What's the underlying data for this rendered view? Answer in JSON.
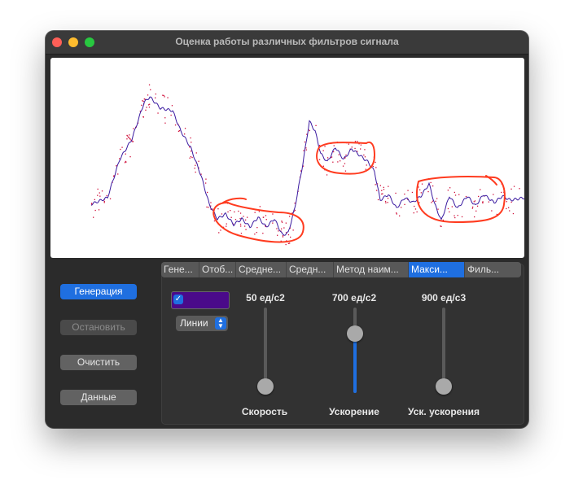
{
  "window": {
    "title": "Оценка работы различных фильтров сигнала"
  },
  "buttons": {
    "generate": "Генерация",
    "stop": "Остановить",
    "clear": "Очистить",
    "data": "Данные"
  },
  "tabs": [
    "Гене...",
    "Отоб...",
    "Средне...",
    "Средн...",
    "Метод наим...",
    "Макси...",
    "Филь..."
  ],
  "active_tab": "Макси...",
  "controls": {
    "checkbox_checked": true,
    "color_well": "#4a0a8a",
    "style_select_value": "Линии"
  },
  "sliders": [
    {
      "value_label": "50 ед/с2",
      "caption": "Скорость",
      "fraction": 0.05
    },
    {
      "value_label": "700 ед/с2",
      "caption": "Ускорение",
      "fraction": 0.7
    },
    {
      "value_label": "900 ед/с3",
      "caption": "Уск. ускорения",
      "fraction": 0.0
    }
  ],
  "colors": {
    "accent": "#1f6fe0",
    "signal_line": "#3a1aa0",
    "noise_points": "#d0103a",
    "annotation": "#ff3b1f"
  }
}
